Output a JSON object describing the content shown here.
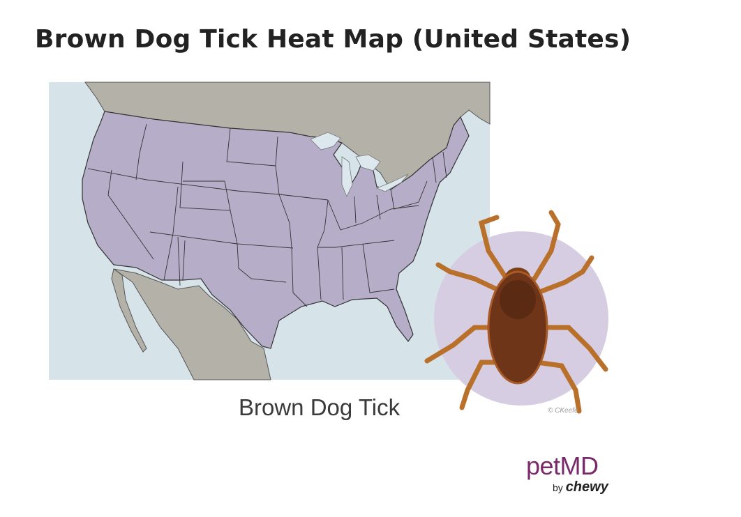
{
  "title": "Brown Dog Tick Heat Map (United States)",
  "caption": "Brown Dog Tick",
  "map": {
    "region": "United States",
    "highlight_color": "#b6adc9",
    "water_color": "#d6e3e8",
    "land_color": "#b4b2a8",
    "species": "Brown Dog Tick"
  },
  "illustration": {
    "subject": "brown-dog-tick",
    "background_color": "#d6cde2",
    "signature": "© CKeefe"
  },
  "logo": {
    "brand": "petMD",
    "by": "by",
    "parent": "chewy",
    "brand_color": "#7a2a6a"
  }
}
